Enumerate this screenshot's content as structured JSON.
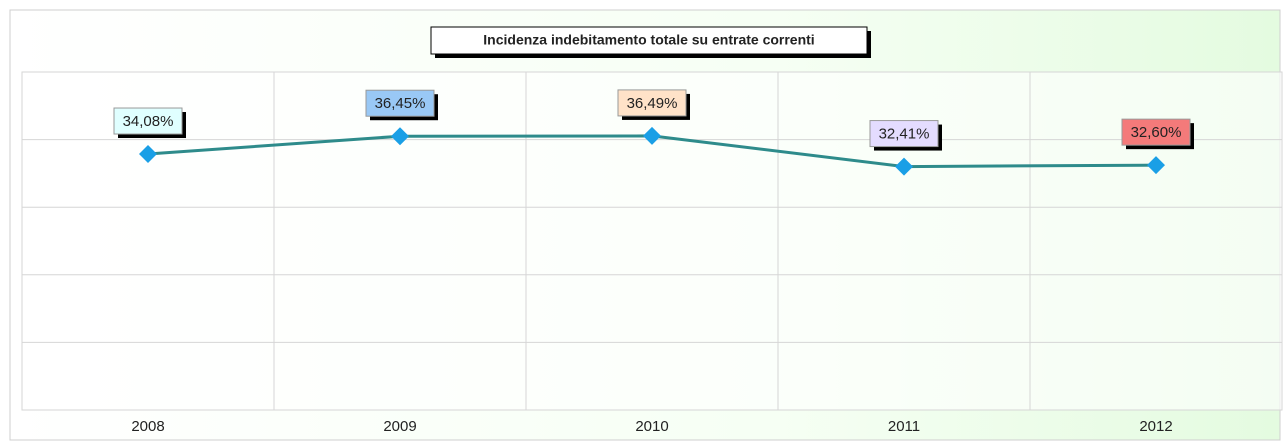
{
  "chart_data": {
    "type": "line",
    "title": "Incidenza indebitamento totale su entrate correnti",
    "categories": [
      "2008",
      "2009",
      "2010",
      "2011",
      "2012"
    ],
    "values": [
      34.08,
      36.45,
      36.49,
      32.41,
      32.6
    ],
    "value_labels": [
      "34,08%",
      "36,45%",
      "36,49%",
      "32,41%",
      "32,60%"
    ],
    "label_colors": [
      "#e0ffff",
      "#99c8f5",
      "#ffe2c8",
      "#e4dcff",
      "#f47a7a"
    ],
    "color": "#2e8b8b",
    "marker_color": "#1a9fe6",
    "ylim": [
      0,
      45
    ],
    "yticks": [
      0,
      9,
      18,
      27,
      36,
      45
    ],
    "grid": true
  }
}
